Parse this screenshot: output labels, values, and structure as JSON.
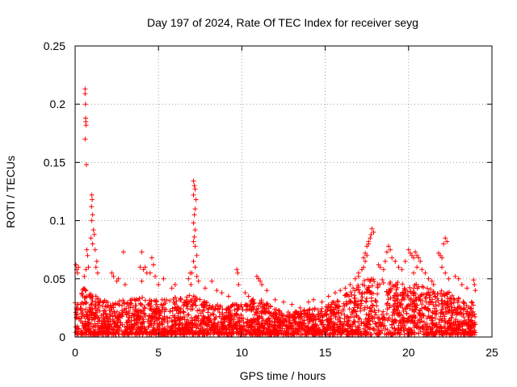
{
  "chart_data": {
    "type": "scatter",
    "title": "Day 197 of 2024, Rate Of TEC Index for receiver seyg",
    "xlabel": "GPS time / hours",
    "ylabel": "ROTI / TECUs",
    "xlim": [
      0,
      25
    ],
    "ylim": [
      0,
      0.25
    ],
    "x_ticks": [
      "0",
      "5",
      "10",
      "15",
      "20",
      "25"
    ],
    "y_ticks": [
      "0",
      "0.05",
      "0.1",
      "0.15",
      "0.2",
      "0.25"
    ],
    "grid": true,
    "marker": "plus",
    "color": "#ff0000",
    "x_span": [
      0,
      24
    ],
    "baseline_points": 3000,
    "baseline_envelope": [
      [
        0.0,
        0.03
      ],
      [
        0.5,
        0.04
      ],
      [
        1.0,
        0.035
      ],
      [
        2.0,
        0.028
      ],
      [
        3.0,
        0.03
      ],
      [
        4.0,
        0.032
      ],
      [
        5.0,
        0.03
      ],
      [
        6.0,
        0.032
      ],
      [
        7.0,
        0.035
      ],
      [
        8.0,
        0.028
      ],
      [
        9.0,
        0.025
      ],
      [
        10.0,
        0.028
      ],
      [
        11.0,
        0.032
      ],
      [
        12.0,
        0.022
      ],
      [
        13.0,
        0.02
      ],
      [
        14.0,
        0.022
      ],
      [
        15.0,
        0.025
      ],
      [
        16.0,
        0.032
      ],
      [
        17.0,
        0.045
      ],
      [
        18.0,
        0.05
      ],
      [
        19.0,
        0.045
      ],
      [
        20.0,
        0.045
      ],
      [
        21.0,
        0.042
      ],
      [
        22.0,
        0.04
      ],
      [
        23.0,
        0.032
      ],
      [
        24.0,
        0.03
      ]
    ],
    "highlight_points": [
      [
        0.05,
        0.062
      ],
      [
        0.1,
        0.058
      ],
      [
        0.15,
        0.055
      ],
      [
        0.2,
        0.06
      ],
      [
        0.6,
        0.213
      ],
      [
        0.6,
        0.209
      ],
      [
        0.62,
        0.2
      ],
      [
        0.63,
        0.188
      ],
      [
        0.64,
        0.185
      ],
      [
        0.66,
        0.182
      ],
      [
        0.6,
        0.17
      ],
      [
        0.68,
        0.148
      ],
      [
        0.7,
        0.075
      ],
      [
        0.75,
        0.07
      ],
      [
        0.8,
        0.06
      ],
      [
        0.65,
        0.058
      ],
      [
        0.55,
        0.052
      ],
      [
        1.0,
        0.122
      ],
      [
        1.02,
        0.118
      ],
      [
        0.98,
        0.112
      ],
      [
        1.05,
        0.105
      ],
      [
        1.0,
        0.1
      ],
      [
        1.1,
        0.092
      ],
      [
        1.15,
        0.088
      ],
      [
        0.95,
        0.085
      ],
      [
        1.05,
        0.08
      ],
      [
        1.2,
        0.075
      ],
      [
        1.3,
        0.065
      ],
      [
        1.25,
        0.06
      ],
      [
        1.35,
        0.055
      ],
      [
        2.3,
        0.052
      ],
      [
        2.2,
        0.055
      ],
      [
        2.5,
        0.048
      ],
      [
        2.6,
        0.05
      ],
      [
        2.9,
        0.073
      ],
      [
        3.0,
        0.045
      ],
      [
        4.0,
        0.073
      ],
      [
        3.9,
        0.06
      ],
      [
        4.1,
        0.058
      ],
      [
        4.2,
        0.06
      ],
      [
        4.3,
        0.055
      ],
      [
        4.0,
        0.048
      ],
      [
        4.6,
        0.068
      ],
      [
        4.7,
        0.062
      ],
      [
        4.5,
        0.055
      ],
      [
        4.8,
        0.052
      ],
      [
        5.0,
        0.045
      ],
      [
        5.3,
        0.05
      ],
      [
        5.8,
        0.042
      ],
      [
        6.0,
        0.045
      ],
      [
        6.8,
        0.05
      ],
      [
        6.9,
        0.055
      ],
      [
        7.1,
        0.134
      ],
      [
        7.15,
        0.13
      ],
      [
        7.2,
        0.127
      ],
      [
        7.1,
        0.122
      ],
      [
        7.25,
        0.118
      ],
      [
        7.2,
        0.11
      ],
      [
        7.15,
        0.105
      ],
      [
        7.1,
        0.098
      ],
      [
        7.2,
        0.092
      ],
      [
        7.15,
        0.086
      ],
      [
        7.1,
        0.082
      ],
      [
        7.2,
        0.078
      ],
      [
        7.3,
        0.07
      ],
      [
        7.1,
        0.065
      ],
      [
        7.2,
        0.06
      ],
      [
        7.0,
        0.055
      ],
      [
        7.3,
        0.052
      ],
      [
        7.4,
        0.048
      ],
      [
        6.95,
        0.045
      ],
      [
        7.8,
        0.042
      ],
      [
        8.2,
        0.048
      ],
      [
        8.5,
        0.04
      ],
      [
        8.8,
        0.038
      ],
      [
        9.2,
        0.035
      ],
      [
        9.7,
        0.058
      ],
      [
        9.75,
        0.055
      ],
      [
        9.8,
        0.045
      ],
      [
        10.2,
        0.038
      ],
      [
        10.4,
        0.035
      ],
      [
        10.9,
        0.052
      ],
      [
        11.0,
        0.05
      ],
      [
        11.1,
        0.048
      ],
      [
        11.2,
        0.045
      ],
      [
        11.5,
        0.04
      ],
      [
        12.0,
        0.032
      ],
      [
        12.5,
        0.03
      ],
      [
        13.0,
        0.028
      ],
      [
        13.5,
        0.025
      ],
      [
        14.0,
        0.03
      ],
      [
        14.3,
        0.032
      ],
      [
        14.8,
        0.03
      ],
      [
        15.2,
        0.035
      ],
      [
        15.6,
        0.038
      ],
      [
        15.9,
        0.04
      ],
      [
        16.2,
        0.042
      ],
      [
        16.5,
        0.045
      ],
      [
        16.8,
        0.05
      ],
      [
        17.0,
        0.052
      ],
      [
        17.3,
        0.068
      ],
      [
        17.4,
        0.072
      ],
      [
        17.5,
        0.078
      ],
      [
        17.6,
        0.082
      ],
      [
        17.7,
        0.085
      ],
      [
        17.75,
        0.088
      ],
      [
        17.8,
        0.093
      ],
      [
        17.9,
        0.09
      ],
      [
        17.6,
        0.08
      ],
      [
        17.5,
        0.07
      ],
      [
        17.4,
        0.065
      ],
      [
        17.3,
        0.06
      ],
      [
        17.2,
        0.058
      ],
      [
        17.0,
        0.055
      ],
      [
        18.2,
        0.062
      ],
      [
        18.3,
        0.06
      ],
      [
        18.5,
        0.058
      ],
      [
        18.6,
        0.065
      ],
      [
        18.7,
        0.073
      ],
      [
        18.8,
        0.078
      ],
      [
        18.9,
        0.075
      ],
      [
        19.0,
        0.068
      ],
      [
        19.2,
        0.065
      ],
      [
        19.4,
        0.06
      ],
      [
        19.6,
        0.058
      ],
      [
        19.8,
        0.065
      ],
      [
        20.0,
        0.075
      ],
      [
        20.1,
        0.072
      ],
      [
        20.2,
        0.07
      ],
      [
        20.3,
        0.068
      ],
      [
        20.4,
        0.073
      ],
      [
        20.5,
        0.07
      ],
      [
        20.6,
        0.068
      ],
      [
        20.7,
        0.065
      ],
      [
        20.5,
        0.06
      ],
      [
        20.8,
        0.058
      ],
      [
        20.3,
        0.055
      ],
      [
        21.0,
        0.055
      ],
      [
        21.2,
        0.05
      ],
      [
        21.4,
        0.048
      ],
      [
        21.5,
        0.045
      ],
      [
        21.8,
        0.072
      ],
      [
        21.9,
        0.07
      ],
      [
        22.0,
        0.068
      ],
      [
        22.1,
        0.08
      ],
      [
        22.2,
        0.085
      ],
      [
        22.3,
        0.082
      ],
      [
        22.0,
        0.06
      ],
      [
        22.2,
        0.055
      ],
      [
        22.4,
        0.05
      ],
      [
        22.8,
        0.052
      ],
      [
        23.0,
        0.05
      ],
      [
        23.2,
        0.045
      ],
      [
        23.5,
        0.042
      ],
      [
        23.9,
        0.049
      ],
      [
        23.95,
        0.045
      ],
      [
        24.0,
        0.04
      ]
    ]
  }
}
